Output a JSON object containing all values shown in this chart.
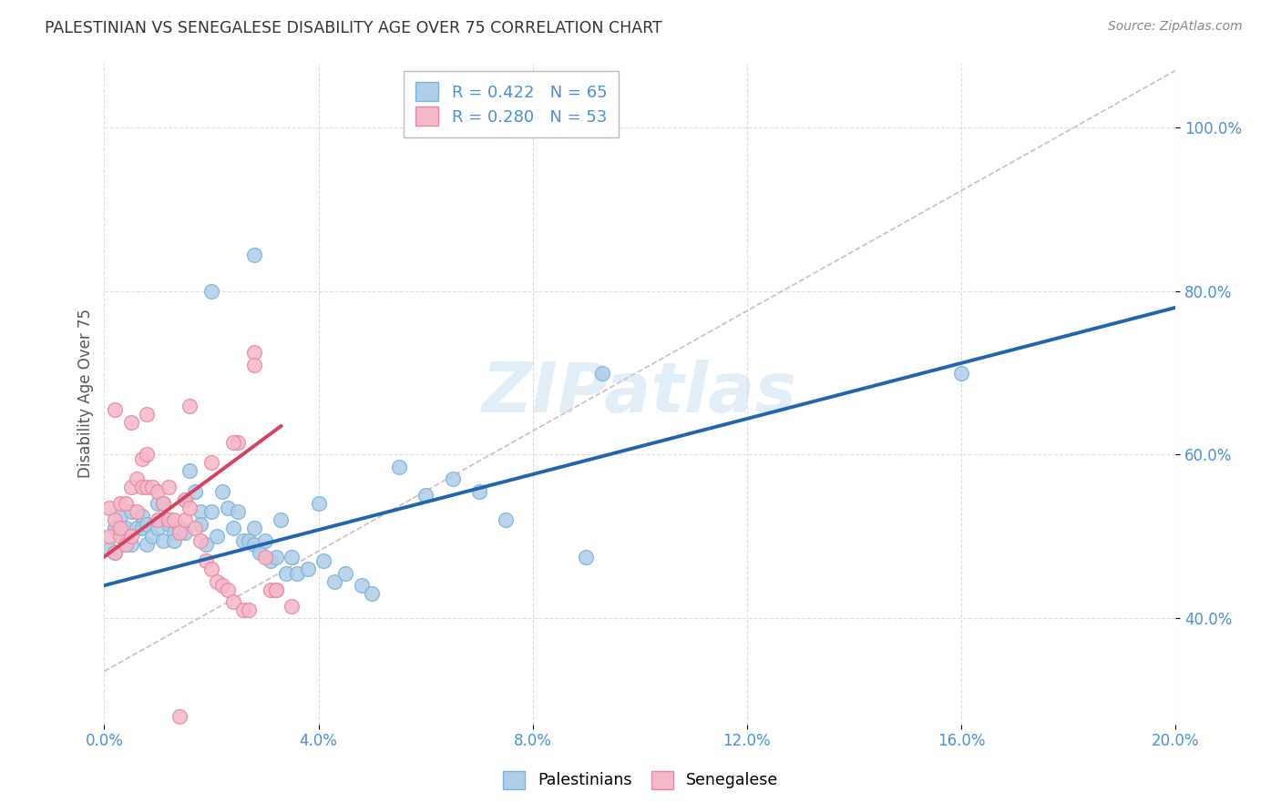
{
  "title": "PALESTINIAN VS SENEGALESE DISABILITY AGE OVER 75 CORRELATION CHART",
  "source": "Source: ZipAtlas.com",
  "ylabel": "Disability Age Over 75",
  "blue_R": "0.422",
  "blue_N": 65,
  "pink_R": "0.280",
  "pink_N": 53,
  "blue_color": "#aecde8",
  "pink_color": "#f5b8c8",
  "blue_edge_color": "#7ab3d9",
  "pink_edge_color": "#e888a0",
  "blue_line_color": "#2166ac",
  "pink_line_color": "#d6415e",
  "ref_line_color": "#d0b8c8",
  "ref_line_color2": "#cccccc",
  "watermark": "ZIPatlas",
  "xlim": [
    0.0,
    0.2
  ],
  "ylim": [
    0.27,
    1.08
  ],
  "xtick_vals": [
    0.0,
    0.04,
    0.08,
    0.12,
    0.16,
    0.2
  ],
  "ytick_vals": [
    0.4,
    0.6,
    0.8,
    1.0
  ],
  "tick_color": "#4a90d9",
  "blue_line_x": [
    0.0,
    0.2
  ],
  "blue_line_y": [
    0.44,
    0.78
  ],
  "pink_line_x": [
    0.0,
    0.033
  ],
  "pink_line_y": [
    0.475,
    0.635
  ],
  "ref_line_x": [
    0.0,
    0.2
  ],
  "ref_line_y": [
    0.335,
    1.07
  ],
  "blue_x": [
    0.001,
    0.002,
    0.002,
    0.003,
    0.003,
    0.004,
    0.004,
    0.005,
    0.005,
    0.006,
    0.007,
    0.007,
    0.008,
    0.008,
    0.009,
    0.01,
    0.01,
    0.011,
    0.011,
    0.012,
    0.013,
    0.013,
    0.014,
    0.015,
    0.015,
    0.016,
    0.017,
    0.018,
    0.018,
    0.019,
    0.02,
    0.021,
    0.022,
    0.023,
    0.024,
    0.025,
    0.026,
    0.027,
    0.028,
    0.028,
    0.029,
    0.03,
    0.031,
    0.032,
    0.033,
    0.034,
    0.035,
    0.036,
    0.038,
    0.04,
    0.041,
    0.043,
    0.045,
    0.048,
    0.05,
    0.055,
    0.06,
    0.065,
    0.07,
    0.075,
    0.09,
    0.16,
    0.028,
    0.093,
    0.02
  ],
  "blue_y": [
    0.485,
    0.51,
    0.48,
    0.505,
    0.525,
    0.51,
    0.49,
    0.53,
    0.49,
    0.51,
    0.525,
    0.51,
    0.515,
    0.49,
    0.5,
    0.54,
    0.51,
    0.54,
    0.495,
    0.515,
    0.505,
    0.495,
    0.51,
    0.545,
    0.505,
    0.58,
    0.555,
    0.53,
    0.515,
    0.49,
    0.53,
    0.5,
    0.555,
    0.535,
    0.51,
    0.53,
    0.495,
    0.495,
    0.49,
    0.51,
    0.48,
    0.495,
    0.47,
    0.475,
    0.52,
    0.455,
    0.475,
    0.455,
    0.46,
    0.54,
    0.47,
    0.445,
    0.455,
    0.44,
    0.43,
    0.585,
    0.55,
    0.57,
    0.555,
    0.52,
    0.475,
    0.7,
    0.845,
    0.7,
    0.8
  ],
  "pink_x": [
    0.001,
    0.001,
    0.002,
    0.002,
    0.003,
    0.003,
    0.003,
    0.004,
    0.004,
    0.005,
    0.005,
    0.006,
    0.006,
    0.007,
    0.007,
    0.008,
    0.008,
    0.009,
    0.01,
    0.01,
    0.011,
    0.012,
    0.012,
    0.013,
    0.014,
    0.015,
    0.015,
    0.016,
    0.017,
    0.018,
    0.019,
    0.02,
    0.021,
    0.022,
    0.023,
    0.024,
    0.025,
    0.026,
    0.027,
    0.028,
    0.03,
    0.031,
    0.032,
    0.035,
    0.002,
    0.005,
    0.008,
    0.016,
    0.02,
    0.024,
    0.028,
    0.032,
    0.014
  ],
  "pink_y": [
    0.5,
    0.535,
    0.48,
    0.52,
    0.5,
    0.54,
    0.51,
    0.49,
    0.54,
    0.5,
    0.56,
    0.53,
    0.57,
    0.56,
    0.595,
    0.6,
    0.56,
    0.56,
    0.555,
    0.52,
    0.54,
    0.56,
    0.52,
    0.52,
    0.505,
    0.52,
    0.545,
    0.535,
    0.51,
    0.495,
    0.47,
    0.46,
    0.445,
    0.44,
    0.435,
    0.42,
    0.615,
    0.41,
    0.41,
    0.725,
    0.475,
    0.435,
    0.435,
    0.415,
    0.655,
    0.64,
    0.65,
    0.66,
    0.59,
    0.615,
    0.71,
    0.435,
    0.28
  ]
}
